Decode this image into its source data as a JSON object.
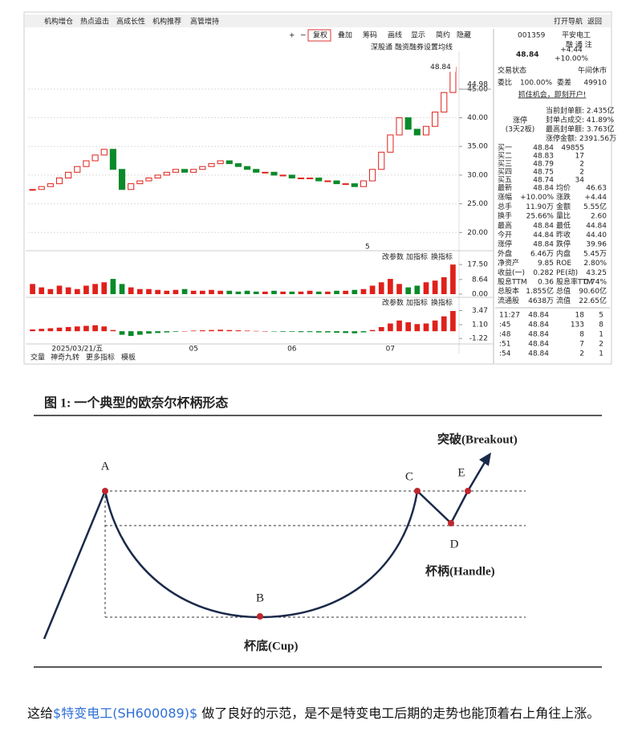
{
  "screenshot": {
    "tabs": [
      "机构增仓",
      "热点追击",
      "高成长性",
      "机构推荐",
      "高管增持"
    ],
    "nav": [
      "打开导航",
      "返回"
    ],
    "toolbar": [
      "+",
      "−",
      "复权",
      "叠加",
      "筹码",
      "画线",
      "显示",
      "简约",
      "隐藏"
    ],
    "chart_links": [
      "深股通",
      "融资融券",
      "设置均线"
    ],
    "panel_tools": [
      "改参数",
      "加指标",
      "换指标"
    ],
    "bottom_tabs": [
      "交量",
      "神奇九转",
      "更多指标",
      "模板"
    ],
    "marker_label": "5"
  },
  "chart_data": [
    {
      "type": "candlestick",
      "values": [
        27.5,
        28.0,
        28.5,
        29.5,
        30.5,
        31.5,
        32.5,
        33.5,
        34.5,
        31.0,
        27.5,
        28.5,
        29.0,
        29.5,
        30.0,
        30.5,
        31.0,
        30.5,
        31.0,
        31.5,
        32.0,
        32.5,
        32.0,
        31.5,
        31.0,
        30.5,
        30.5,
        30.0,
        30.0,
        29.5,
        29.5,
        29.5,
        29.0,
        29.0,
        28.5,
        28.5,
        28.0,
        29.0,
        31.0,
        34.0,
        37.0,
        40.0,
        38.0,
        37.0,
        38.5,
        41.0,
        44.4,
        48.84
      ],
      "ylim": [
        18.5,
        51
      ],
      "yticks": [
        {
          "value": 20,
          "label": "20.00"
        },
        {
          "value": 25,
          "label": "25.00"
        },
        {
          "value": 30,
          "label": "30.00"
        },
        {
          "value": 35,
          "label": "35.00"
        },
        {
          "value": 40,
          "label": "40.00"
        },
        {
          "value": 45,
          "label": "45.00"
        }
      ],
      "price_tag": 48.84,
      "cursor_value": 44.98,
      "grid": true
    },
    {
      "type": "bar",
      "values": [
        6,
        4,
        3,
        5,
        4,
        3,
        5,
        6,
        7,
        9,
        6,
        4,
        3,
        3,
        2.5,
        2,
        2.5,
        3,
        2,
        2,
        2.5,
        2,
        2,
        1.5,
        2,
        1.5,
        1.5,
        2,
        1.5,
        1.5,
        1.5,
        2,
        1.5,
        1.5,
        2,
        2,
        2.5,
        3,
        5,
        7,
        9,
        6,
        4,
        5,
        7,
        8,
        10,
        17.5
      ],
      "ylim": [
        0,
        19
      ],
      "yticks": [
        {
          "value": 0,
          "label": "0.00"
        },
        8.64,
        {
          "value": 17.5,
          "label": "17.50"
        }
      ]
    },
    {
      "type": "bar",
      "categories": [
        null,
        null,
        null,
        null,
        null,
        "2025/03/21/五",
        null,
        null,
        null,
        null,
        null,
        null,
        null,
        null,
        null,
        null,
        null,
        null,
        "05",
        null,
        null,
        null,
        null,
        null,
        null,
        null,
        null,
        null,
        null,
        "06",
        null,
        null,
        null,
        null,
        null,
        null,
        null,
        null,
        null,
        null,
        "07",
        null,
        null,
        null,
        null,
        null,
        null,
        null
      ],
      "values": [
        0.3,
        0.4,
        0.5,
        0.6,
        0.7,
        0.8,
        0.9,
        1.0,
        0.8,
        0.2,
        -0.6,
        -0.8,
        -0.6,
        -0.4,
        -0.3,
        -0.2,
        -0.1,
        0,
        0.1,
        0.15,
        0.2,
        0.25,
        0.2,
        0.15,
        0.1,
        0.05,
        0,
        -0.05,
        -0.1,
        -0.1,
        -0.15,
        -0.15,
        -0.2,
        -0.2,
        -0.25,
        -0.3,
        -0.35,
        -0.2,
        0.2,
        0.7,
        1.3,
        1.8,
        1.5,
        1.2,
        1.3,
        1.8,
        2.5,
        3.4
      ],
      "ylim": [
        -1.6,
        3.8
      ],
      "yticks": [
        -1.22,
        {
          "value": 1.1,
          "label": "1.10"
        },
        3.47
      ]
    }
  ],
  "quote": {
    "code": "001359",
    "name": "平安电工",
    "tags": "融 通 注",
    "price": "48.84",
    "change": "+4.44",
    "pct": "+10.00%",
    "status": [
      "交易状态",
      "午间休市"
    ],
    "ratio": [
      "委比",
      "100.00%",
      "委差",
      "49910"
    ],
    "ad": "抓住机会，即刻开户!",
    "limit": [
      "涨停",
      "(3天2板)"
    ],
    "limit_info": [
      "当前封单额: 2.435亿",
      "封单占成交: 41.89%",
      "最高封单额: 3.763亿",
      "涨停金额: 2391.56万"
    ],
    "book": [
      [
        "买一",
        "48.84",
        "49855"
      ],
      [
        "买二",
        "48.83",
        "17"
      ],
      [
        "买三",
        "48.79",
        "2"
      ],
      [
        "买四",
        "48.75",
        "2"
      ],
      [
        "买五",
        "48.74",
        "34"
      ]
    ],
    "stats": [
      [
        "最新",
        "48.84",
        "均价",
        "46.63"
      ],
      [
        "涨幅",
        "+10.00%",
        "涨跌",
        "+4.44"
      ],
      [
        "总手",
        "11.90万",
        "金额",
        "5.55亿"
      ],
      [
        "换手",
        "25.66%",
        "量比",
        "2.60"
      ],
      [
        "最高",
        "48.84",
        "最低",
        "44.84"
      ],
      [
        "今开",
        "44.84",
        "昨收",
        "44.40"
      ],
      [
        "涨停",
        "48.84",
        "跌停",
        "39.96"
      ],
      [
        "外盘",
        "6.46万",
        "内盘",
        "5.45万"
      ],
      [
        "净资产",
        "9.85",
        "ROE",
        "2.80%"
      ],
      [
        "收益(一)",
        "0.282",
        "PE(动)",
        "43.25"
      ],
      [
        "股息TTM",
        "0.36",
        "股息率TTM",
        "0.74%"
      ],
      [
        "总股本",
        "1.855亿",
        "总值",
        "90.60亿"
      ],
      [
        "流通股",
        "4638万",
        "流值",
        "22.65亿"
      ]
    ],
    "trades": [
      [
        "11:27",
        "48.84",
        "18",
        "5"
      ],
      [
        ":45",
        "48.84",
        "133",
        "8"
      ],
      [
        ":48",
        "48.84",
        "8",
        "1"
      ],
      [
        ":51",
        "48.84",
        "7",
        "2"
      ],
      [
        ":54",
        "48.84",
        "2",
        "1"
      ]
    ]
  },
  "figure": {
    "title": "图 1:  一个典型的欧奈尔杯柄形态",
    "points": [
      "A",
      "B",
      "C",
      "D",
      "E"
    ],
    "breakout": "突破(Breakout)",
    "handle": "杯柄(Handle)",
    "cup": "杯底(Cup)"
  },
  "post": {
    "before": "这给",
    "link": "$特变电工(SH600089)$",
    "after": " 做了良好的示范，是不是特变电工后期的走势也能顶着右上角往上涨。"
  }
}
